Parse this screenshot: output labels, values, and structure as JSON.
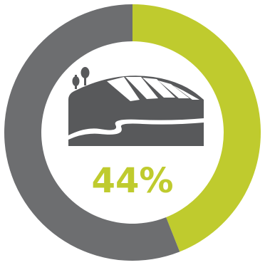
{
  "chart_data": {
    "type": "pie",
    "style": "donut",
    "categories": [
      "highlighted",
      "remainder"
    ],
    "values": [
      44,
      56
    ],
    "center_label": "44%",
    "center_icon": "farm-field-icon",
    "colors": {
      "highlight": "#bfcb2e",
      "remainder": "#6d6e70",
      "icon": "#58595b",
      "label": "#bfcb2e",
      "background": "#ffffff"
    }
  }
}
